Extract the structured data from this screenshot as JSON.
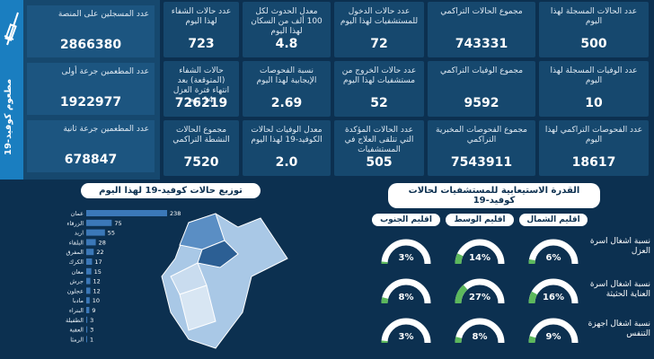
{
  "vaccination": {
    "title": "مطعوم كوفيد-19",
    "cards": [
      {
        "label": "عدد المسجلين على المنصة",
        "value": "2866380"
      },
      {
        "label": "عدد المطعمين جرعة أولى",
        "value": "1922977"
      },
      {
        "label": "عدد المطعمين جرعة ثانية",
        "value": "678847"
      }
    ]
  },
  "stats": [
    {
      "label": "عدد الحالات المسجلة لهذا اليوم",
      "value": "500"
    },
    {
      "label": "مجموع الحالات التراكمي",
      "value": "743331"
    },
    {
      "label": "عدد حالات الدخول للمستشفيات لهذا اليوم",
      "value": "72"
    },
    {
      "label": "معدل الحدوث لكل 100 ألف من السكان لهذا اليوم",
      "value": "4.8"
    },
    {
      "label": "عدد حالات الشفاء لهذا اليوم",
      "value": "723"
    },
    {
      "label": "عدد الوفيات المسجلة لهذا اليوم",
      "value": "10"
    },
    {
      "label": "مجموع الوفيات التراكمي",
      "value": "9592"
    },
    {
      "label": "عدد حالات الخروج من مستشفيات لهذا اليوم",
      "value": "52"
    },
    {
      "label": "نسبة الفحوصات الإيجابية لهذا اليوم",
      "value": "2.69"
    },
    {
      "label": "حالات الشفاء (المتوقعة) بعد انتهاء فترة العزل 14 يوم",
      "value": "726219"
    },
    {
      "label": "عدد الفحوصات التراكمي لهذا اليوم",
      "value": "18617"
    },
    {
      "label": "مجموع الفحوصات المخبرية التراكمي",
      "value": "7543911"
    },
    {
      "label": "عدد الحالات المؤكدة التي تتلقى العلاج في المستشفيات",
      "value": "505"
    },
    {
      "label": "معدل الوفيات لحالات الكوفيد-19 لهذا اليوم",
      "value": "2.0"
    },
    {
      "label": "مجموع الحالات النشطة التراكمي",
      "value": "7520"
    }
  ],
  "distribution": {
    "title": "توزيع حالات كوفيد-19 لهذا اليوم",
    "chart_data": {
      "type": "bar",
      "categories": [
        "عمان",
        "الزرقاء",
        "اربد",
        "البلقاء",
        "المفرق",
        "الكرك",
        "معان",
        "جرش",
        "عجلون",
        "مادبا",
        "البتراء",
        "الطفيلة",
        "العقبة",
        "الرمثا"
      ],
      "values": [
        238,
        75,
        55,
        28,
        22,
        17,
        15,
        12,
        12,
        10,
        9,
        3,
        3,
        1
      ]
    }
  },
  "capacity": {
    "title": "القدرة الاستيعابية للمستشفيات لحالات كوفيد-19",
    "columns": [
      "اقليم الشمال",
      "اقليم الوسط",
      "اقليم الجنوب"
    ],
    "rows": [
      {
        "label": "نسبة اشغال اسرة العزل",
        "values": [
          "6%",
          "14%",
          "3%"
        ],
        "fractions": [
          0.06,
          0.14,
          0.03
        ]
      },
      {
        "label": "نسبة اشغال اسرة العناية الحثيثة",
        "values": [
          "16%",
          "27%",
          "8%"
        ],
        "fractions": [
          0.16,
          0.27,
          0.08
        ]
      },
      {
        "label": "نسبة اشغال اجهزة التنفس",
        "values": [
          "9%",
          "8%",
          "3%"
        ],
        "fractions": [
          0.09,
          0.08,
          0.03
        ]
      }
    ]
  },
  "colors": {
    "background": "#0c3050",
    "card": "#16486e",
    "bar": "#3b78b8",
    "gauge_track": "#ffffff",
    "gauge_fill": "#5cb85c"
  }
}
